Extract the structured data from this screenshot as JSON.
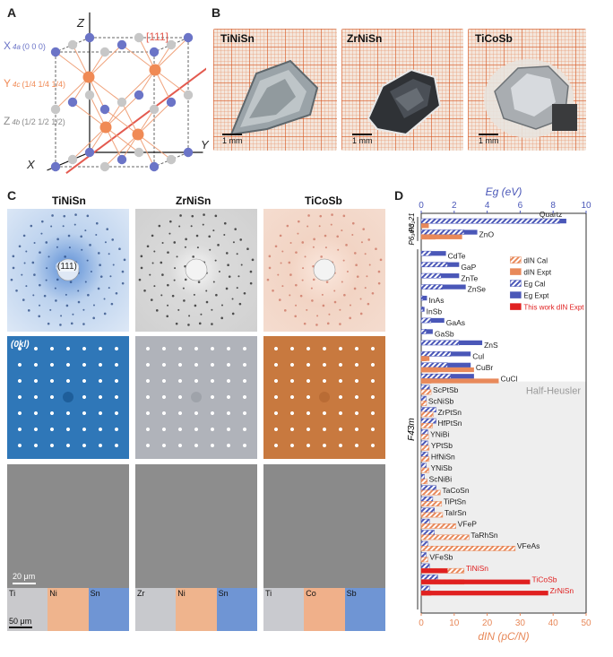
{
  "panels": {
    "A": {
      "letter": "A",
      "axes": {
        "z": "Z",
        "y": "Y",
        "x": "X"
      },
      "direction": "[111]",
      "sites": [
        {
          "sym": "X",
          "sub": "4a",
          "coord": "(0 0 0)",
          "color": "#6b74c7"
        },
        {
          "sym": "Y",
          "sub": "4c",
          "coord": "(1/4 1/4 1/4)",
          "color": "#f08a55"
        },
        {
          "sym": "Z",
          "sub": "4b",
          "coord": "(1/2 1/2 1/2)",
          "color": "#8a8a8a"
        }
      ]
    },
    "B": {
      "letter": "B",
      "crystals": [
        {
          "label": "TiNiSn",
          "scale": "1 mm"
        },
        {
          "label": "ZrNiSn",
          "scale": "1 mm"
        },
        {
          "label": "TiCoSb",
          "scale": "1 mm"
        }
      ]
    },
    "C": {
      "letter": "C",
      "columns": [
        "TiNiSn",
        "ZrNiSn",
        "TiCoSb"
      ],
      "laue_label": "(111)",
      "plane_label": "(0kl)",
      "sem_scale": "20 μm",
      "eds_scale": "50 μm",
      "eds_elements": [
        [
          "Ti",
          "Ni",
          "Sn"
        ],
        [
          "Zr",
          "Ni",
          "Sn"
        ],
        [
          "Ti",
          "Co",
          "Sb"
        ]
      ]
    },
    "D": {
      "letter": "D"
    }
  },
  "colors": {
    "eg": "#4a57b8",
    "d": "#e8895a",
    "this_work": "#e02020",
    "hh_bg": "#eeeeee"
  },
  "chart_data": {
    "type": "bar",
    "orientation": "horizontal",
    "top_axis": {
      "label": "Eg (eV)",
      "range": [
        0,
        10
      ],
      "ticks": [
        0,
        2,
        4,
        6,
        8,
        10
      ]
    },
    "bottom_axis": {
      "label": "dIN (pC/N)",
      "range": [
        0,
        50
      ],
      "ticks": [
        0,
        10,
        20,
        30,
        40,
        50
      ]
    },
    "legend": [
      "dIN Cal",
      "dIN Expt",
      "Eg Cal",
      "Eg Expt",
      "This work dIN Expt"
    ],
    "group_labels": [
      "P3₂21",
      "P6₃mc",
      "F4̄3m"
    ],
    "shaded_region_label": "Half-Heusler",
    "materials": [
      {
        "name": "Quartz",
        "eg_cal": 8.4,
        "eg_expt": 8.8,
        "d_cal": 0,
        "d_expt": 2.3
      },
      {
        "name": "ZnO",
        "eg_cal": 2.6,
        "eg_expt": 3.4,
        "d_cal": 4.2,
        "d_expt": 12.4
      },
      {
        "name": "CdTe",
        "eg_cal": 0.6,
        "eg_expt": 1.5,
        "d_cal": 0,
        "d_expt": 0
      },
      {
        "name": "GaP",
        "eg_cal": 1.6,
        "eg_expt": 2.3,
        "d_cal": 0,
        "d_expt": 0
      },
      {
        "name": "ZnTe",
        "eg_cal": 1.2,
        "eg_expt": 2.3,
        "d_cal": 0,
        "d_expt": 0
      },
      {
        "name": "ZnSe",
        "eg_cal": 1.3,
        "eg_expt": 2.7,
        "d_cal": 0,
        "d_expt": 0
      },
      {
        "name": "InAs",
        "eg_cal": 0.1,
        "eg_expt": 0.35,
        "d_cal": 0,
        "d_expt": 0
      },
      {
        "name": "InSb",
        "eg_cal": 0.1,
        "eg_expt": 0.2,
        "d_cal": 0,
        "d_expt": 0
      },
      {
        "name": "GaAs",
        "eg_cal": 0.6,
        "eg_expt": 1.4,
        "d_cal": 0,
        "d_expt": 0
      },
      {
        "name": "GaSb",
        "eg_cal": 0.3,
        "eg_expt": 0.7,
        "d_cal": 0,
        "d_expt": 0
      },
      {
        "name": "ZnS",
        "eg_cal": 2.3,
        "eg_expt": 3.7,
        "d_cal": 0,
        "d_expt": 0
      },
      {
        "name": "CuI",
        "eg_cal": 1.8,
        "eg_expt": 3.0,
        "d_cal": 1.5,
        "d_expt": 2.5
      },
      {
        "name": "CuBr",
        "eg_cal": 1.6,
        "eg_expt": 3.0,
        "d_cal": 5.0,
        "d_expt": 16.0
      },
      {
        "name": "CuCl",
        "eg_cal": 1.8,
        "eg_expt": 3.2,
        "d_cal": 3.0,
        "d_expt": 23.5
      },
      {
        "name": "ScPtSb",
        "eg_cal": 0.5,
        "eg_expt": 0,
        "d_cal": 3.0,
        "d_expt": 0
      },
      {
        "name": "ScNiSb",
        "eg_cal": 0.3,
        "eg_expt": 0,
        "d_cal": 1.6,
        "d_expt": 0
      },
      {
        "name": "ZrPtSn",
        "eg_cal": 0.9,
        "eg_expt": 0,
        "d_cal": 3.6,
        "d_expt": 0
      },
      {
        "name": "HfPtSn",
        "eg_cal": 0.9,
        "eg_expt": 0,
        "d_cal": 3.4,
        "d_expt": 0
      },
      {
        "name": "YNiBi",
        "eg_cal": 0.4,
        "eg_expt": 0,
        "d_cal": 2.2,
        "d_expt": 0
      },
      {
        "name": "YPtSb",
        "eg_cal": 0.4,
        "eg_expt": 0,
        "d_cal": 2.4,
        "d_expt": 0
      },
      {
        "name": "HfNiSn",
        "eg_cal": 0.4,
        "eg_expt": 0,
        "d_cal": 2.4,
        "d_expt": 0
      },
      {
        "name": "YNiSb",
        "eg_cal": 0.3,
        "eg_expt": 0,
        "d_cal": 2.3,
        "d_expt": 0
      },
      {
        "name": "ScNiBi",
        "eg_cal": 0.2,
        "eg_expt": 0,
        "d_cal": 1.8,
        "d_expt": 0
      },
      {
        "name": "TaCoSn",
        "eg_cal": 0.9,
        "eg_expt": 0,
        "d_cal": 5.8,
        "d_expt": 0
      },
      {
        "name": "TiPtSn",
        "eg_cal": 0.7,
        "eg_expt": 0,
        "d_cal": 6.2,
        "d_expt": 0
      },
      {
        "name": "TaIrSn",
        "eg_cal": 0.8,
        "eg_expt": 0,
        "d_cal": 6.5,
        "d_expt": 0
      },
      {
        "name": "VFeP",
        "eg_cal": 0.5,
        "eg_expt": 0,
        "d_cal": 10.5,
        "d_expt": 0
      },
      {
        "name": "TaRhSn",
        "eg_cal": 0.8,
        "eg_expt": 0,
        "d_cal": 14.5,
        "d_expt": 0
      },
      {
        "name": "VFeAs",
        "eg_cal": 0.4,
        "eg_expt": 0,
        "d_cal": 28.5,
        "d_expt": 0
      },
      {
        "name": "VFeSb",
        "eg_cal": 0.3,
        "eg_expt": 0,
        "d_cal": 2.0,
        "d_expt": 0
      },
      {
        "name": "TiNiSn",
        "eg_cal": 0.5,
        "eg_expt": 0,
        "d_cal": 13.0,
        "d_expt": 8.0,
        "this_work": true
      },
      {
        "name": "TiCoSb",
        "eg_cal": 1.0,
        "eg_expt": 0,
        "d_cal": 13.0,
        "d_expt": 33.0,
        "this_work": true
      },
      {
        "name": "ZrNiSn",
        "eg_cal": 0.5,
        "eg_expt": 0,
        "d_cal": 3.0,
        "d_expt": 38.5,
        "this_work": true
      }
    ]
  }
}
